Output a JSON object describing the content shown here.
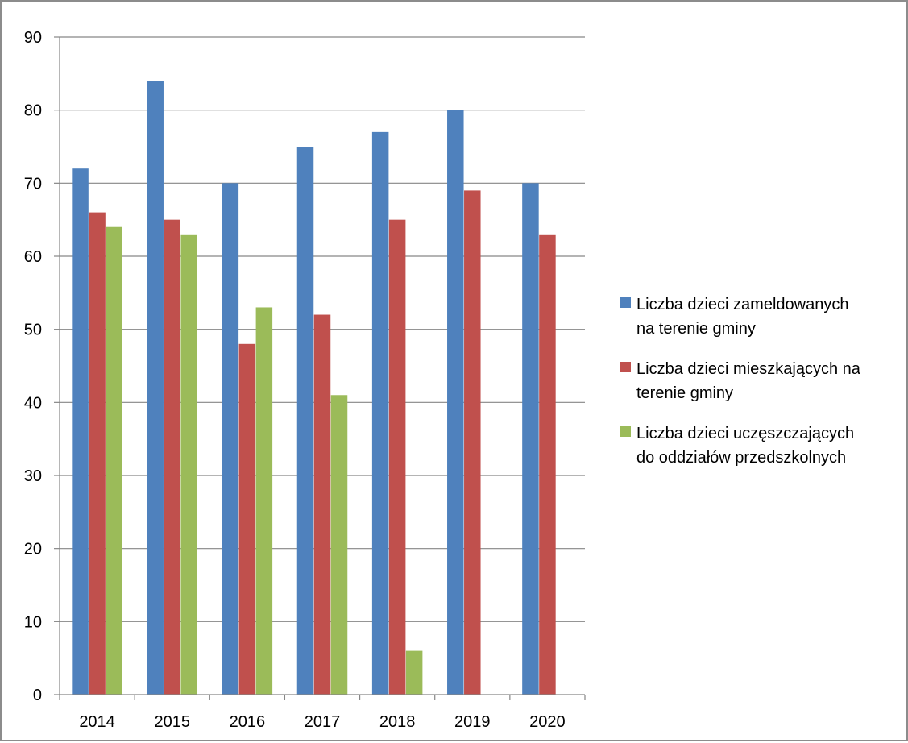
{
  "chart_data": {
    "type": "bar",
    "title": "",
    "xlabel": "",
    "ylabel": "",
    "categories": [
      "2014",
      "2015",
      "2016",
      "2017",
      "2018",
      "2019",
      "2020"
    ],
    "ylim": [
      0,
      90
    ],
    "yticks": [
      0,
      10,
      20,
      30,
      40,
      50,
      60,
      70,
      80,
      90
    ],
    "grid": true,
    "legend_position": "right",
    "series": [
      {
        "name": "Liczba dzieci zameldowanych na terenie gminy",
        "legend_lines": [
          "Liczba dzieci zameldowanych",
          "na terenie gminy"
        ],
        "color": "#4f81bd",
        "values": [
          72,
          84,
          70,
          75,
          77,
          80,
          70
        ]
      },
      {
        "name": "Liczba dzieci mieszkających na terenie gminy",
        "legend_lines": [
          "Liczba dzieci mieszkających na",
          "terenie gminy"
        ],
        "color": "#c0504d",
        "values": [
          66,
          65,
          48,
          52,
          65,
          69,
          63
        ]
      },
      {
        "name": "Liczba dzieci uczęszczających do oddziałów przedszkolnych",
        "legend_lines": [
          "Liczba dzieci uczęszczających",
          "do oddziałów przedszkolnych"
        ],
        "color": "#9bbb59",
        "values": [
          64,
          63,
          53,
          41,
          6,
          null,
          null
        ]
      }
    ]
  }
}
